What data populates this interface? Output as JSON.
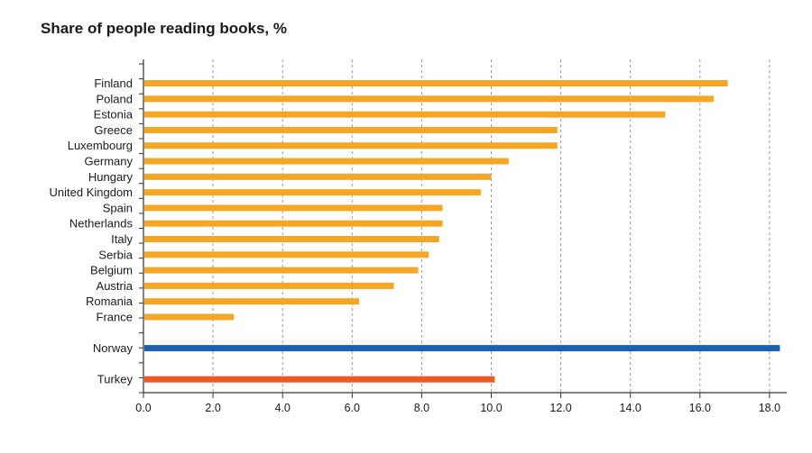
{
  "chart_data": {
    "type": "bar",
    "orientation": "horizontal",
    "title": "Share of people reading books, %",
    "xlabel": "",
    "ylabel": "",
    "xlim": [
      0,
      18.5
    ],
    "xticks": [
      "0.0",
      "2.0",
      "4.0",
      "6.0",
      "8.0",
      "10.0",
      "12.0",
      "14.0",
      "16.0",
      "18.0"
    ],
    "grid": "vertical dashed",
    "categories": [
      "Finland",
      "Poland",
      "Estonia",
      "Greece",
      "Luxembourg",
      "Germany",
      "Hungary",
      "United Kingdom",
      "Spain",
      "Netherlands",
      "Italy",
      "Serbia",
      "Belgium",
      "Austria",
      "Romania",
      "France",
      "",
      "Norway",
      "",
      "Turkey"
    ],
    "values": [
      16.8,
      16.4,
      15.0,
      11.9,
      11.9,
      10.5,
      10.0,
      9.7,
      8.6,
      8.6,
      8.5,
      8.2,
      7.9,
      7.2,
      6.2,
      2.6,
      null,
      18.3,
      null,
      10.1
    ],
    "colors": [
      "#f5a623",
      "#f5a623",
      "#f5a623",
      "#f5a623",
      "#f5a623",
      "#f5a623",
      "#f5a623",
      "#f5a623",
      "#f5a623",
      "#f5a623",
      "#f5a623",
      "#f5a623",
      "#f5a623",
      "#f5a623",
      "#f5a623",
      "#f5a623",
      null,
      "#1f5fb0",
      null,
      "#ee5a24"
    ]
  }
}
